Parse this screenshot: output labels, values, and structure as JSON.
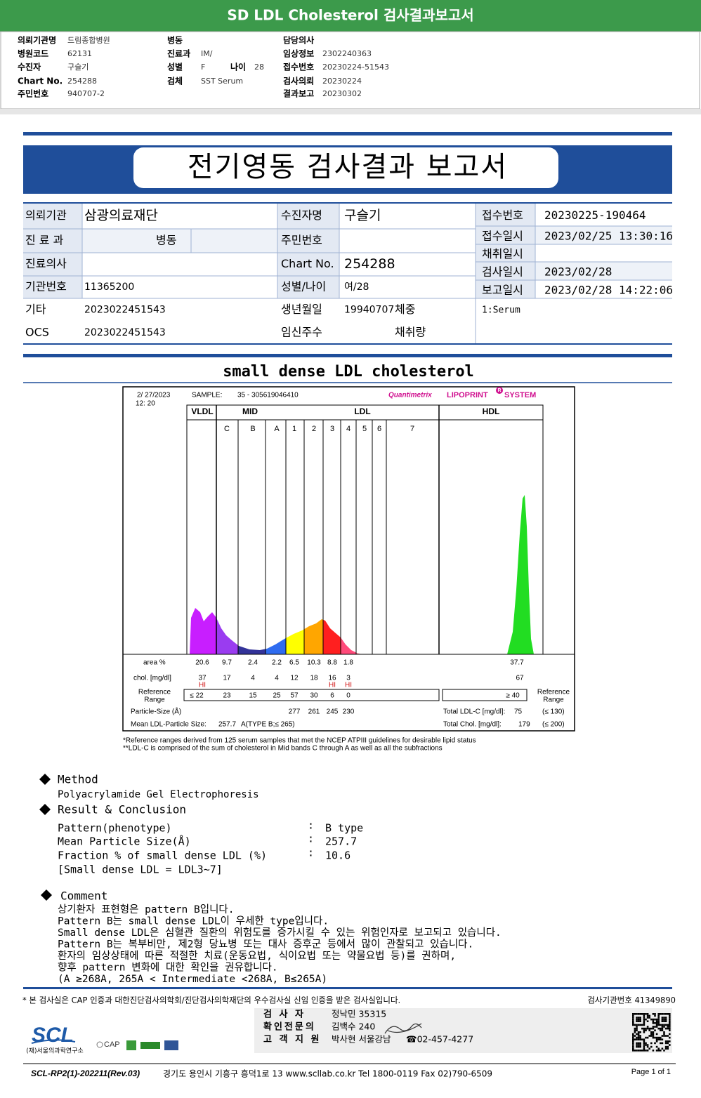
{
  "header": {
    "title": "SD LDL Cholesterol 검사결과보고서",
    "fields": [
      {
        "label": "의뢰기관명",
        "value": "드림종합병원"
      },
      {
        "label": "병원코드",
        "value": "62131"
      },
      {
        "label": "수진자",
        "value": "구슬기"
      },
      {
        "label": "Chart No.",
        "value": "254288"
      },
      {
        "label": "주민번호",
        "value": "940707-2"
      },
      {
        "label": "병동"
      },
      {
        "label": "진료과",
        "value": "IM/"
      },
      {
        "label": "성별",
        "value": "F"
      },
      {
        "label": "나이",
        "value": "28"
      },
      {
        "label": "검체",
        "value": "SST Serum"
      },
      {
        "label": "담당의사"
      },
      {
        "label": "임상정보",
        "value": "2302240363"
      },
      {
        "label": "접수번호",
        "value": "20230224-51543"
      },
      {
        "label": "검사의뢰",
        "value": "20230224"
      },
      {
        "label": "결과보고",
        "value": "20230302"
      }
    ]
  },
  "report": {
    "title": "전기영동 검사결과 보고서",
    "left": [
      {
        "label": "의뢰기관",
        "value": "삼광의료재단"
      },
      {
        "label": "진 료 과",
        "value": "병동"
      },
      {
        "label": "진료의사"
      },
      {
        "label": "기관번호",
        "value": "11365200"
      },
      {
        "label": "기타",
        "value": "2023022451543"
      },
      {
        "label": "OCS",
        "value": "2023022451543"
      }
    ],
    "middle": [
      {
        "label": "수진자명",
        "value": "구슬기"
      },
      {
        "label": "주민번호"
      },
      {
        "label": "Chart No.",
        "value": "254288"
      },
      {
        "label": "성별/나이",
        "value": "여/28"
      },
      {
        "label": "생년월일",
        "value": "19940707",
        "extra": "체중"
      },
      {
        "label": "임신주수",
        "extra": "채취량"
      }
    ],
    "right": [
      {
        "label": "접수번호",
        "value": "20230225-190464"
      },
      {
        "label": "접수일시",
        "value": "2023/02/25 13:30:16"
      },
      {
        "label": "채취일시"
      },
      {
        "label": "검사일시",
        "value": "2023/02/28"
      },
      {
        "label": "보고일시",
        "value": "2023/02/28 14:22:06"
      }
    ],
    "specimen": "1:Serum"
  },
  "lipoprint": {
    "section_title": "small dense LDL cholesterol",
    "date": "2/ 27/2023",
    "time": "12: 20",
    "sample_label": "SAMPLE:",
    "sample": "35 - 305619046410",
    "brand": "Quantimetrix",
    "product": "LIPOPRINT",
    "trademark": "R",
    "system": "SYSTEM",
    "groups": [
      "VLDL",
      "MID",
      "LDL",
      "HDL"
    ],
    "bands": [
      "C",
      "B",
      "A",
      "1",
      "2",
      "3",
      "4",
      "5",
      "6",
      "7"
    ],
    "area_label": "area %",
    "chol_label": "chol. [mg/dl]",
    "reference_label": [
      "Reference",
      "Range"
    ],
    "particle_label": "Particle-Size (Å)",
    "mean_label": "Mean LDL-Particle Size:",
    "area": [
      20.6,
      9.7,
      2.4,
      2.2,
      6.5,
      10.3,
      8.8,
      1.8
    ],
    "hdl_area": 37.7,
    "chol": [
      37,
      17,
      4,
      4,
      12,
      18,
      16,
      3
    ],
    "hdl_chol": 67,
    "flags": [
      "HI",
      null,
      null,
      null,
      null,
      null,
      "HI",
      "HI"
    ],
    "reference": [
      "≤ 22",
      "23",
      "15",
      "25",
      "57",
      "30",
      "6",
      "0"
    ],
    "hdl_reference": "≥ 40",
    "particle_size": [
      277,
      261,
      245,
      230
    ],
    "total_ldl_label": "Total LDL-C [mg/dl]:",
    "total_ldl": 75,
    "total_ldl_ref": "(≤ 130)",
    "mean_size": 257.7,
    "mean_note": "A(TYPE B;≤ 265)",
    "total_chol_label": "Total Chol. [mg/dl]:",
    "total_chol": 179,
    "total_chol_ref": "(≤ 200)",
    "notes": [
      "*Reference ranges derived from 125 serum samples that met the NCEP ATPIII guidelines for desirable lipid status",
      "**LDL-C is comprised of the sum of cholesterol in Mid bands C through A as well as all the subfractions"
    ]
  },
  "method": {
    "heading": "Method",
    "text": "Polyacrylamide Gel Electrophoresis"
  },
  "result": {
    "heading": "Result & Conclusion",
    "rows": [
      {
        "label": "Pattern(phenotype)",
        "sep": ":",
        "value": "B type"
      },
      {
        "label": "Mean Particle Size(Å)",
        "sep": ":",
        "value": "257.7"
      },
      {
        "label": "Fraction % of small dense LDL (%)",
        "sep": ":",
        "value": "10.6"
      }
    ],
    "note": "[Small dense LDL = LDL3~7]"
  },
  "comment": {
    "heading": "Comment",
    "lines": [
      "상기환자 표현형은 pattern B입니다.",
      "Pattern B는 small dense LDL이 우세한 type입니다.",
      "Small dense LDL은 심혈관 질환의 위험도를 증가시킬 수 있는 위험인자로 보고되고 있습니다.",
      "Pattern B는 복부비만, 제2형 당뇨병 또는 대사 증후군 등에서 많이 관찰되고 있습니다.",
      "환자의 임상상태에 따른 적절한 치료(운동요법, 식이요법 또는 약물요법 등)를 권하며,",
      "향후 pattern 변화에 대한 확인을 권유합니다.",
      "(A ≥268A, 265A < Intermediate <268A, B≤265A)"
    ]
  },
  "footer": {
    "accreditation": "* 본 검사실은 CAP 인증과 대한진단검사의학회/진단검사의학재단의 우수검사실 신임 인증을 받은 검사실입니다.",
    "institution_no": "검사기관번호 41349890",
    "signers": [
      {
        "role": "검 사 자",
        "name": "정낙민 35315"
      },
      {
        "role": "확인전문의",
        "name": "김백수 240"
      },
      {
        "role": "고 객 지 원",
        "name": "박사현 서울강남",
        "phone": "☎02-457-4277"
      }
    ],
    "logo": "SCL",
    "institute": "(재)서울의과학연구소",
    "cap": "CAP",
    "code": "SCL-RP2(1)-202211(Rev.03)",
    "address": "경기도 용인시 기흥구 흥덕1로 13   www.scllab.co.kr   Tel 1800-0119   Fax 02)790-6509",
    "page": "Page 1 of 1"
  }
}
